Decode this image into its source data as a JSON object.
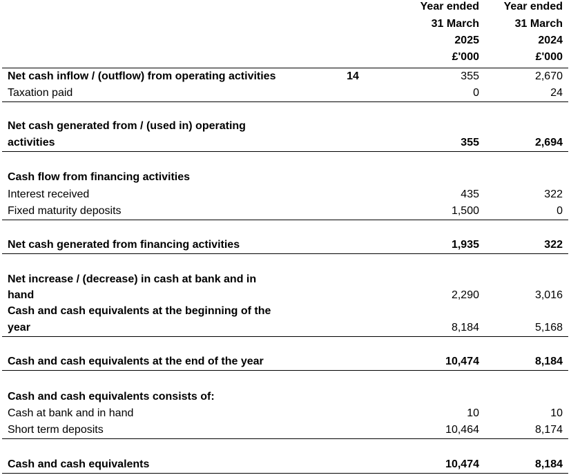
{
  "header": {
    "col_2025": [
      "Year ended",
      "31 March",
      "2025",
      "£'000"
    ],
    "col_2024": [
      "Year ended",
      "31 March",
      "2024",
      "£'000"
    ]
  },
  "rows": {
    "op_inflow": {
      "label": "Net cash inflow / (outflow) from operating activities",
      "note": "14",
      "y2025": "355",
      "y2024": "2,670"
    },
    "tax_paid": {
      "label": "Taxation paid",
      "y2025": "0",
      "y2024": "24"
    },
    "net_op": {
      "label_line1": "Net cash generated from / (used in) operating",
      "label_line2": "activities",
      "y2025": "355",
      "y2024": "2,694"
    },
    "fin_heading": {
      "label": "Cash flow from financing activities"
    },
    "interest": {
      "label": "Interest received",
      "y2025": "435",
      "y2024": "322"
    },
    "fixed_deposits": {
      "label": "Fixed maturity deposits",
      "y2025": "1,500",
      "y2024": "0"
    },
    "net_fin": {
      "label": "Net cash generated from financing activities",
      "y2025": "1,935",
      "y2024": "322"
    },
    "net_increase": {
      "label_line1": "Net increase / (decrease) in cash at bank and in",
      "label_line2": "hand",
      "y2025": "2,290",
      "y2024": "3,016"
    },
    "cash_begin": {
      "label_line1": "Cash and cash equivalents at the beginning of the",
      "label_line2": "year",
      "y2025": "8,184",
      "y2024": "5,168"
    },
    "cash_end": {
      "label": "Cash and cash equivalents at the end of the year",
      "y2025": "10,474",
      "y2024": "8,184"
    },
    "consists_heading": {
      "label": "Cash and cash equivalents consists of:"
    },
    "cash_bank": {
      "label": "Cash at bank and in hand",
      "y2025": "10",
      "y2024": "10"
    },
    "short_term": {
      "label": "Short term deposits",
      "y2025": "10,464",
      "y2024": "8,174"
    },
    "cash_total": {
      "label": "Cash and cash equivalents",
      "y2025": "10,474",
      "y2024": "8,184"
    }
  }
}
